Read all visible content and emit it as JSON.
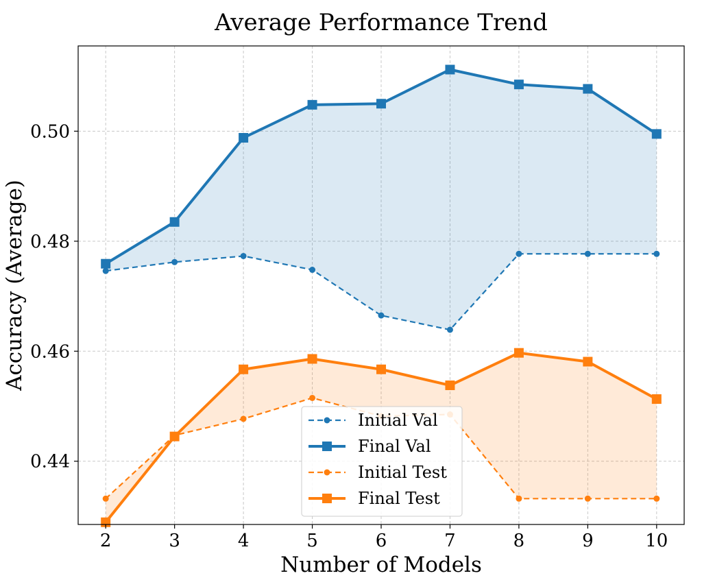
{
  "chart_data": {
    "type": "line",
    "title": "Average Performance Trend",
    "xlabel": "Number of Models",
    "ylabel": "Accuracy (Average)",
    "x": [
      2,
      3,
      4,
      5,
      6,
      7,
      8,
      9,
      10
    ],
    "xlim": [
      1.6,
      10.4
    ],
    "ylim": [
      0.4285,
      0.5155
    ],
    "x_ticks": [
      "2",
      "3",
      "4",
      "5",
      "6",
      "7",
      "8",
      "9",
      "10"
    ],
    "y_ticks": [
      {
        "value": 0.44,
        "label": "0.44"
      },
      {
        "value": 0.46,
        "label": "0.46"
      },
      {
        "value": 0.48,
        "label": "0.48"
      },
      {
        "value": 0.5,
        "label": "0.50"
      }
    ],
    "grid": true,
    "legend_position": "bottom-center",
    "series": [
      {
        "name": "Initial Val",
        "color": "#1f77b4",
        "style": "dashed",
        "marker": "circle",
        "values": [
          0.4746,
          0.4762,
          0.4773,
          0.4748,
          0.4665,
          0.4639,
          0.4777,
          0.4777,
          0.4777
        ]
      },
      {
        "name": "Final Val",
        "color": "#1f77b4",
        "style": "solid",
        "marker": "square",
        "values": [
          0.4759,
          0.4835,
          0.4988,
          0.5048,
          0.505,
          0.5112,
          0.5085,
          0.5077,
          0.4995
        ]
      },
      {
        "name": "Initial Test",
        "color": "#ff7f0e",
        "style": "dashed",
        "marker": "circle",
        "values": [
          0.4332,
          0.4447,
          0.4477,
          0.4515,
          0.4482,
          0.4485,
          0.4332,
          0.4332,
          0.4332
        ]
      },
      {
        "name": "Final Test",
        "color": "#ff7f0e",
        "style": "solid",
        "marker": "square",
        "values": [
          0.4289,
          0.4445,
          0.4567,
          0.4586,
          0.4567,
          0.4538,
          0.4597,
          0.4581,
          0.4513
        ]
      }
    ],
    "fills": [
      {
        "between": [
          "Initial Val",
          "Final Val"
        ],
        "color": "#1f77b4"
      },
      {
        "between": [
          "Initial Test",
          "Final Test"
        ],
        "color": "#ff7f0e"
      }
    ]
  }
}
